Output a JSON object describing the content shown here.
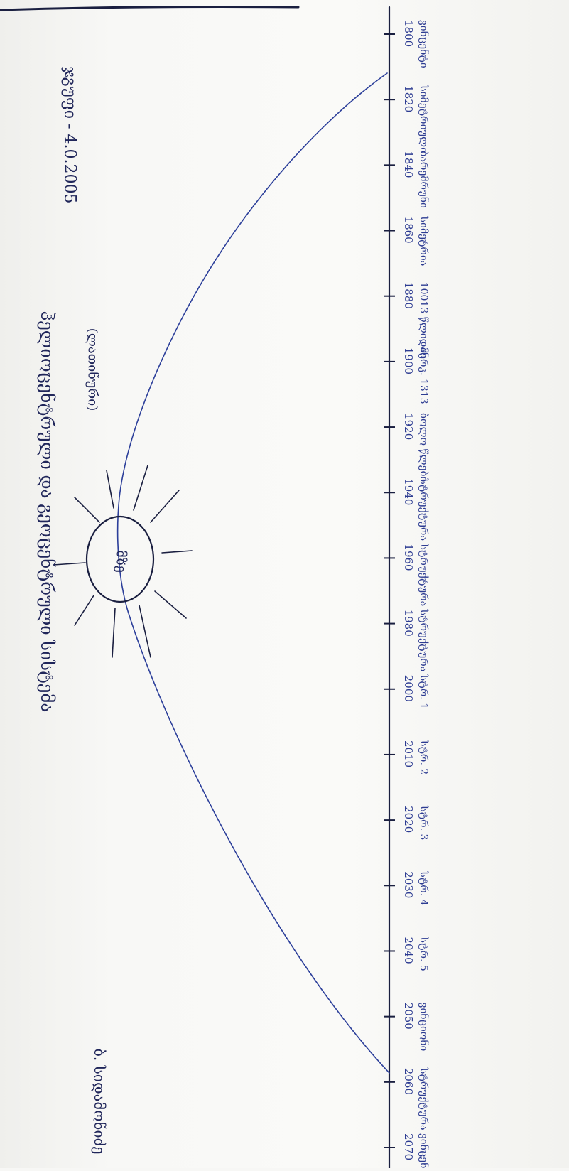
{
  "page": {
    "header_title": "ჰელიოცენტრული და გეოცენტრული სისტემა",
    "sun_note": "(ლათინური)",
    "sun_label": "მზე",
    "date_note": "ჯგუფი - 4.0.2005",
    "author": "ბ. სიდამონიძე"
  },
  "axis_ticks": [
    {
      "label": "1800",
      "sub": "ვინცენტი"
    },
    {
      "label": "1820",
      "sub": "სიმეტრიული"
    },
    {
      "label": "1840",
      "sub": "ბარემრუნი"
    },
    {
      "label": "1860",
      "sub": "სიმეტრია"
    },
    {
      "label": "1880",
      "sub": "10013 წლიდან"
    },
    {
      "label": "1900",
      "sub": "მერკ. 1313"
    },
    {
      "label": "1920",
      "sub": "ბოლო წლები"
    },
    {
      "label": "1940",
      "sub": "სტრუქტურა"
    },
    {
      "label": "1960",
      "sub": "სტრუქტურა"
    },
    {
      "label": "1980",
      "sub": "სტრუქტურა"
    },
    {
      "label": "2000",
      "sub": "სტრ. 1"
    },
    {
      "label": "2010",
      "sub": "სტრ. 2"
    },
    {
      "label": "2020",
      "sub": "სტრ. 3"
    },
    {
      "label": "2030",
      "sub": "სტრ. 4"
    },
    {
      "label": "2040",
      "sub": "სტრ. 5"
    },
    {
      "label": "2050",
      "sub": "ვინციონი"
    },
    {
      "label": "2060",
      "sub": "სტრუქტურა"
    },
    {
      "label": "2070",
      "sub": "ვინცენტი"
    }
  ]
}
